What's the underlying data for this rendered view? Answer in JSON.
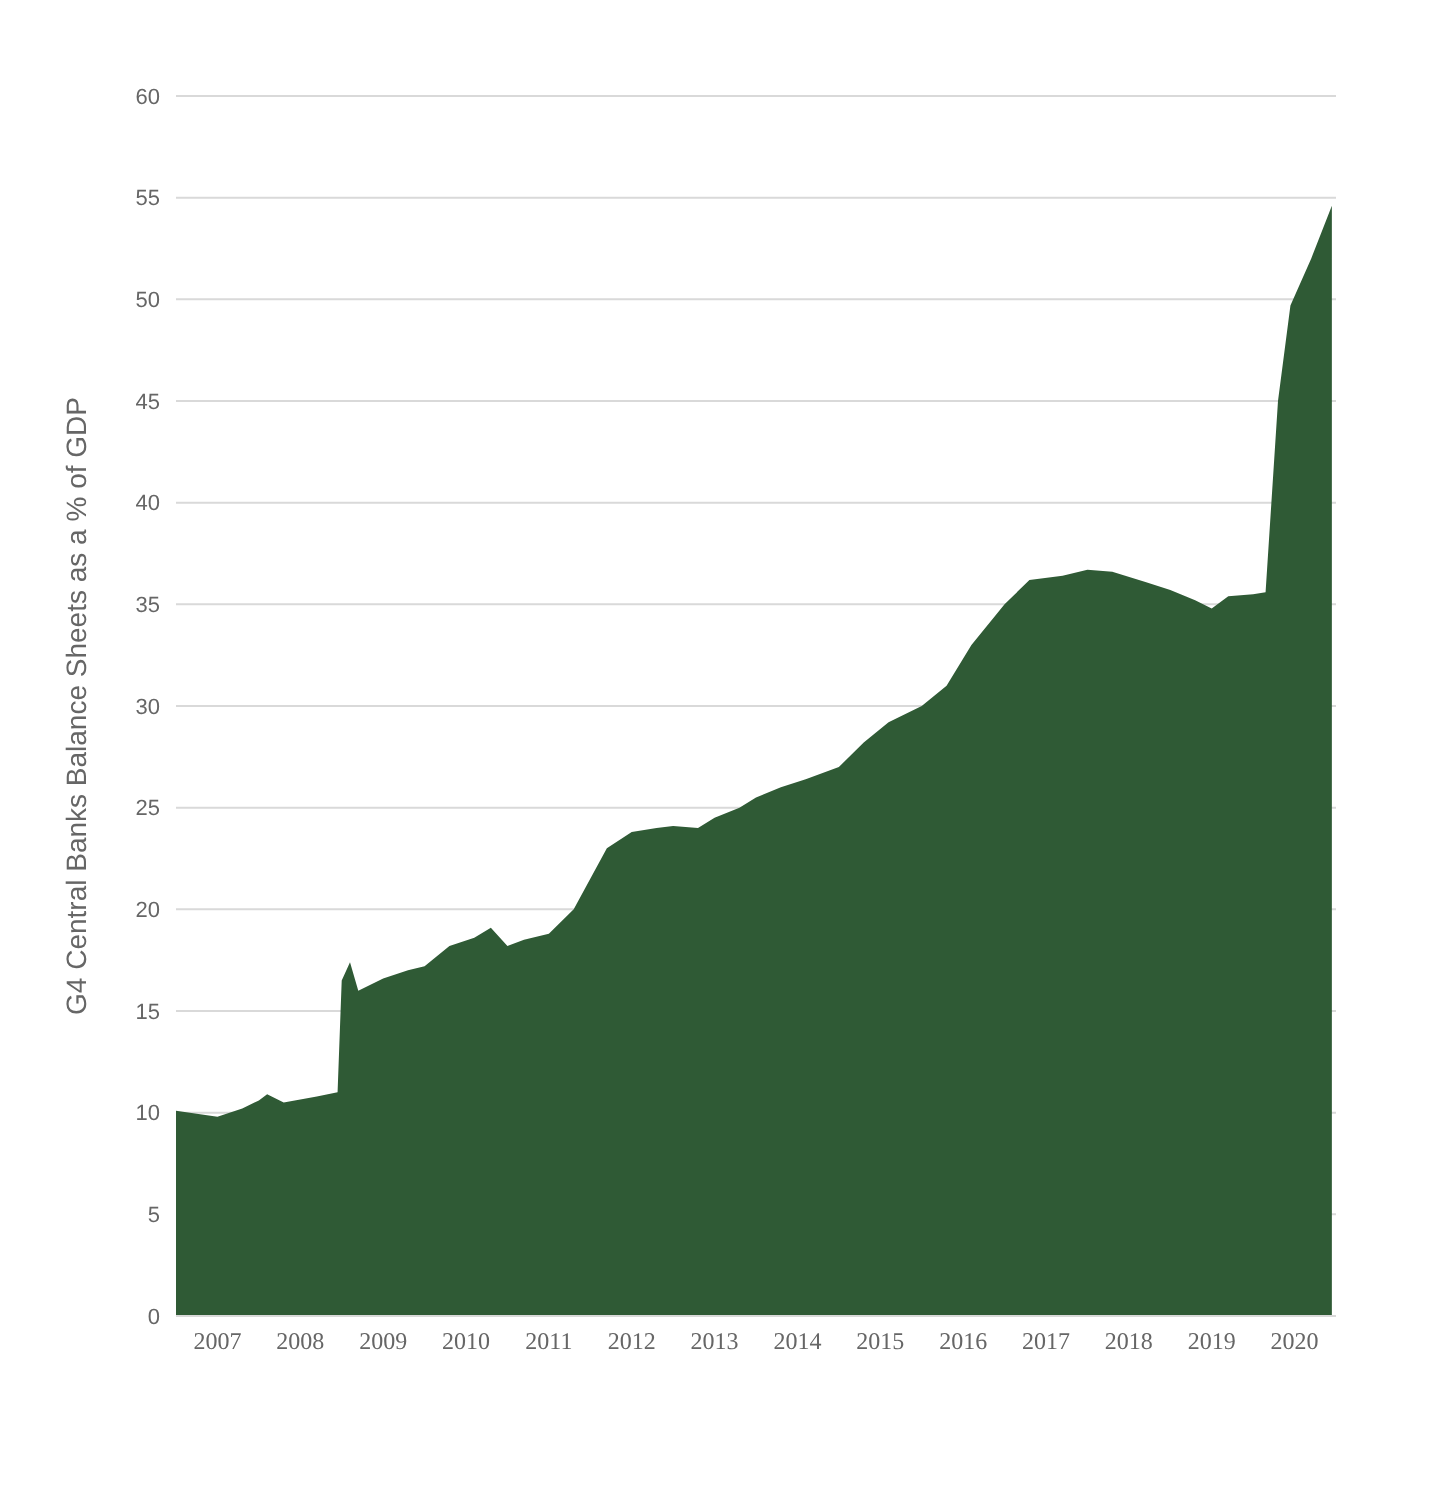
{
  "chart_data": {
    "type": "area",
    "ylabel": "G4 Central Banks Balance Sheets as a % of GDP",
    "x": [
      2007.0,
      2007.5,
      2007.8,
      2008.0,
      2008.1,
      2008.3,
      2008.7,
      2008.95,
      2009.0,
      2009.1,
      2009.2,
      2009.5,
      2009.8,
      2010.0,
      2010.3,
      2010.6,
      2010.8,
      2011.0,
      2011.2,
      2011.5,
      2011.8,
      2012.0,
      2012.2,
      2012.5,
      2012.8,
      2013.0,
      2013.3,
      2013.5,
      2013.8,
      2014.0,
      2014.3,
      2014.6,
      2015.0,
      2015.3,
      2015.6,
      2016.0,
      2016.3,
      2016.6,
      2017.0,
      2017.3,
      2017.7,
      2018.0,
      2018.3,
      2018.7,
      2019.0,
      2019.3,
      2019.5,
      2019.7,
      2020.0,
      2020.15,
      2020.3,
      2020.45,
      2020.7,
      2020.95
    ],
    "series": [
      {
        "color": "#2f5a35",
        "values": [
          10.1,
          9.8,
          10.2,
          10.6,
          10.9,
          10.5,
          10.8,
          11.0,
          16.5,
          17.4,
          16.0,
          16.6,
          17.0,
          17.2,
          18.2,
          18.6,
          19.1,
          18.2,
          18.5,
          18.8,
          20.0,
          21.5,
          23.0,
          23.8,
          24.0,
          24.1,
          24.0,
          24.5,
          25.0,
          25.5,
          26.0,
          26.4,
          27.0,
          28.2,
          29.2,
          30.0,
          31.0,
          33.0,
          35.0,
          36.2,
          36.4,
          36.7,
          36.6,
          36.1,
          35.7,
          35.2,
          34.8,
          35.4,
          35.5,
          35.6,
          45.0,
          49.7,
          52.0,
          54.6
        ]
      }
    ],
    "xlim": [
      2007,
      2021
    ],
    "xticks": [
      {
        "value": 2007.5,
        "label": "2007"
      },
      {
        "value": 2008.5,
        "label": "2008"
      },
      {
        "value": 2009.5,
        "label": "2009"
      },
      {
        "value": 2010.5,
        "label": "2010"
      },
      {
        "value": 2011.5,
        "label": "2011"
      },
      {
        "value": 2012.5,
        "label": "2012"
      },
      {
        "value": 2013.5,
        "label": "2013"
      },
      {
        "value": 2014.5,
        "label": "2014"
      },
      {
        "value": 2015.5,
        "label": "2015"
      },
      {
        "value": 2016.5,
        "label": "2016"
      },
      {
        "value": 2017.5,
        "label": "2017"
      },
      {
        "value": 2018.5,
        "label": "2018"
      },
      {
        "value": 2019.5,
        "label": "2019"
      },
      {
        "value": 2020.5,
        "label": "2020"
      }
    ],
    "ylim": [
      0,
      60
    ],
    "yticks": [
      0,
      5,
      10,
      15,
      20,
      25,
      30,
      35,
      40,
      45,
      50,
      55,
      60
    ],
    "grid": "y"
  }
}
